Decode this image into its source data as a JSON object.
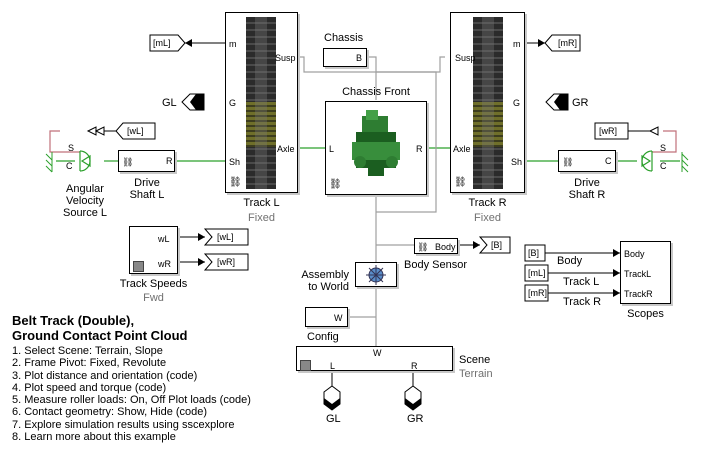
{
  "blocks": {
    "track_l": {
      "name": "Track L",
      "subtitle": "Fixed",
      "ports": {
        "m": "m",
        "susp": "Susp",
        "g": "G",
        "axle": "Axle",
        "sh": "Sh"
      }
    },
    "track_r": {
      "name": "Track R",
      "subtitle": "Fixed",
      "ports": {
        "m": "m",
        "susp": "Susp",
        "g": "G",
        "axle": "Axle",
        "sh": "Sh"
      }
    },
    "chassis": {
      "name": "Chassis",
      "port": "B"
    },
    "chassis_front": {
      "name": "Chassis Front",
      "port_l": "L",
      "port_r": "R"
    },
    "drive_shaft_l": {
      "name": "Drive\nShaft L",
      "port": "R"
    },
    "drive_shaft_r": {
      "name": "Drive\nShaft R",
      "port": "C"
    },
    "angular_velocity_source_l": {
      "name": "Angular\nVelocity\nSource L",
      "port_s": "S",
      "port_c": "C"
    },
    "track_speeds": {
      "name": "Track Speeds",
      "subtitle": "Fwd",
      "ports": [
        "wL",
        "wR"
      ]
    },
    "body_sensor": {
      "name": "Body Sensor",
      "port": "Body"
    },
    "assembly": {
      "name": "Assembly\nto World"
    },
    "config": {
      "name": "Config",
      "port": "W"
    },
    "scene": {
      "name": "Scene",
      "subtitle": "Terrain",
      "port_w": "W",
      "port_l": "L",
      "port_r": "R"
    },
    "scopes": {
      "name": "Scopes",
      "ports": [
        "Body",
        "TrackL",
        "TrackR"
      ]
    }
  },
  "tags": {
    "mL_out": "[mL]",
    "mR_out": "[mR]",
    "GL": "GL",
    "GR": "GR",
    "wL_from": "[wL]",
    "wR_from": "[wR]",
    "wL_goto": "[wL]",
    "wR_goto": "[wR]",
    "B_goto": "[B]",
    "B_from": "[B]",
    "mL_from": "[mL]",
    "mR_from": "[mR]",
    "scene_GL": "GL",
    "scene_GR": "GR"
  },
  "signal_labels": {
    "body": "Body",
    "track_l": "Track L",
    "track_r": "Track R"
  },
  "description": {
    "title_line1": "Belt Track (Double),",
    "title_line2": "Ground Contact Point Cloud",
    "items": [
      "1. Select Scene: Terrain, Slope",
      "2. Frame Pivot: Fixed, Revolute",
      "3. Plot distance and orientation (code)",
      "4. Plot speed and torque (code)",
      "5. Measure roller loads: On, Off  Plot loads (code)",
      "6. Contact geometry: Show, Hide (code)",
      "7. Explore simulation results using sscexplore",
      "8. Learn more about this example"
    ]
  },
  "colors": {
    "physical_line": "#2ca02c",
    "frame_line": "#a0a0a0",
    "signal_line": "#000000",
    "loop_line": "#c0707a"
  }
}
